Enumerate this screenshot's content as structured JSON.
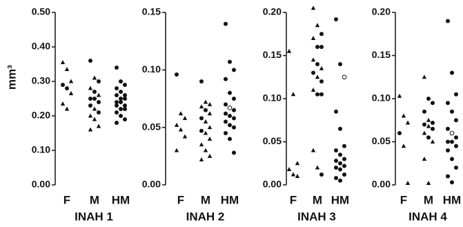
{
  "y_label": "mm³",
  "chart_data": [
    {
      "type": "strip",
      "title": "INAH 1",
      "categories": [
        "F",
        "M",
        "HM"
      ],
      "ylim": [
        0,
        0.5
      ],
      "yticks": [
        {
          "value": 0,
          "label": "0.00"
        },
        {
          "value": 0.1,
          "label": "0.10"
        },
        {
          "value": 0.2,
          "label": "0.20"
        },
        {
          "value": 0.3,
          "label": "0.30"
        },
        {
          "value": 0.4,
          "label": "0.40"
        },
        {
          "value": 0.5,
          "label": "0.50"
        }
      ],
      "groups": [
        {
          "values": [
            0.355,
            0.335,
            0.3,
            0.29,
            0.28,
            0.265,
            0.235,
            0.22
          ],
          "markers": [
            "triangle",
            "triangle",
            "triangle",
            "dot",
            "dot",
            "triangle",
            "triangle",
            "triangle"
          ]
        },
        {
          "values": [
            0.36,
            0.31,
            0.3,
            0.28,
            0.27,
            0.26,
            0.25,
            0.25,
            0.24,
            0.23,
            0.22,
            0.21,
            0.2,
            0.19,
            0.17,
            0.16
          ],
          "markers": [
            "dot",
            "triangle",
            "dot",
            "triangle",
            "dot",
            "triangle",
            "dot",
            "dot",
            "dot",
            "dot",
            "triangle",
            "dot",
            "triangle",
            "triangle",
            "triangle",
            "triangle"
          ]
        },
        {
          "values": [
            0.34,
            0.3,
            0.29,
            0.28,
            0.27,
            0.26,
            0.26,
            0.25,
            0.25,
            0.24,
            0.24,
            0.23,
            0.23,
            0.22,
            0.22,
            0.21,
            0.2,
            0.19,
            0.18
          ],
          "markers": [
            "dot",
            "dot",
            "dot",
            "dot",
            "dot",
            "dot",
            "dot",
            "dot",
            "dot",
            "dot",
            "dot",
            "dot",
            "dot",
            "dot",
            "dot",
            "dot",
            "dot",
            "dot",
            "dot"
          ]
        }
      ]
    },
    {
      "type": "strip",
      "title": "INAH 2",
      "categories": [
        "F",
        "M",
        "HM"
      ],
      "ylim": [
        0,
        0.15
      ],
      "yticks": [
        {
          "value": 0,
          "label": "0.00"
        },
        {
          "value": 0.05,
          "label": "0.05"
        },
        {
          "value": 0.1,
          "label": "0.10"
        },
        {
          "value": 0.15,
          "label": "0.15"
        }
      ],
      "groups": [
        {
          "values": [
            0.096,
            0.062,
            0.058,
            0.052,
            0.048,
            0.042,
            0.03
          ],
          "markers": [
            "dot",
            "triangle",
            "triangle",
            "triangle",
            "triangle",
            "triangle",
            "triangle"
          ]
        },
        {
          "values": [
            0.09,
            0.072,
            0.07,
            0.068,
            0.065,
            0.062,
            0.058,
            0.055,
            0.05,
            0.047,
            0.045,
            0.04,
            0.035,
            0.03,
            0.025,
            0.022
          ],
          "markers": [
            "dot",
            "triangle",
            "triangle",
            "triangle",
            "dot",
            "triangle",
            "dot",
            "triangle",
            "triangle",
            "dot",
            "triangle",
            "triangle",
            "triangle",
            "triangle",
            "triangle",
            "triangle"
          ]
        },
        {
          "values": [
            0.14,
            0.107,
            0.1,
            0.092,
            0.08,
            0.075,
            0.07,
            0.067,
            0.065,
            0.062,
            0.06,
            0.058,
            0.055,
            0.052,
            0.05,
            0.045,
            0.04,
            0.028
          ],
          "markers": [
            "dot",
            "dot",
            "dot",
            "dot",
            "dot",
            "dot",
            "dot",
            "open",
            "dot",
            "dot",
            "dot",
            "dot",
            "dot",
            "dot",
            "dot",
            "dot",
            "dot",
            "dot"
          ]
        }
      ]
    },
    {
      "type": "strip",
      "title": "INAH 3",
      "categories": [
        "F",
        "M",
        "HM"
      ],
      "ylim": [
        0,
        0.2
      ],
      "yticks": [
        {
          "value": 0,
          "label": "0.00"
        },
        {
          "value": 0.05,
          "label": "0.05"
        },
        {
          "value": 0.1,
          "label": "0.10"
        },
        {
          "value": 0.15,
          "label": "0.15"
        },
        {
          "value": 0.2,
          "label": "0.20"
        }
      ],
      "groups": [
        {
          "values": [
            0.155,
            0.105,
            0.025,
            0.018,
            0.012,
            0.01
          ],
          "markers": [
            "triangle",
            "triangle",
            "triangle",
            "triangle",
            "triangle",
            "triangle"
          ]
        },
        {
          "values": [
            0.205,
            0.185,
            0.175,
            0.17,
            0.16,
            0.16,
            0.145,
            0.14,
            0.135,
            0.13,
            0.125,
            0.12,
            0.11,
            0.105,
            0.105,
            0.04,
            0.02,
            0.012
          ],
          "markers": [
            "triangle",
            "triangle",
            "dot",
            "triangle",
            "dot",
            "dot",
            "triangle",
            "dot",
            "triangle",
            "dot",
            "triangle",
            "dot",
            "triangle",
            "dot",
            "dot",
            "triangle",
            "triangle",
            "dot"
          ]
        },
        {
          "values": [
            0.192,
            0.14,
            0.125,
            0.085,
            0.065,
            0.045,
            0.04,
            0.035,
            0.03,
            0.028,
            0.025,
            0.022,
            0.02,
            0.018,
            0.012,
            0.008,
            0.005
          ],
          "markers": [
            "dot",
            "dot",
            "open",
            "dot",
            "dot",
            "dot",
            "dot",
            "dot",
            "dot",
            "dot",
            "dot",
            "dot",
            "dot",
            "dot",
            "dot",
            "dot",
            "dot"
          ]
        }
      ]
    },
    {
      "type": "strip",
      "title": "INAH 4",
      "categories": [
        "F",
        "M",
        "HM"
      ],
      "ylim": [
        0,
        0.2
      ],
      "yticks": [
        {
          "value": 0,
          "label": "0.00"
        },
        {
          "value": 0.05,
          "label": "0.05"
        },
        {
          "value": 0.1,
          "label": "0.10"
        },
        {
          "value": 0.15,
          "label": "0.15"
        },
        {
          "value": 0.2,
          "label": "0.20"
        }
      ],
      "groups": [
        {
          "values": [
            0.103,
            0.08,
            0.072,
            0.06,
            0.045,
            0.002
          ],
          "markers": [
            "triangle",
            "triangle",
            "triangle",
            "dot",
            "triangle",
            "triangle"
          ]
        },
        {
          "values": [
            0.125,
            0.1,
            0.095,
            0.085,
            0.075,
            0.072,
            0.07,
            0.068,
            0.065,
            0.06,
            0.055,
            0.05,
            0.03,
            0.002
          ],
          "markers": [
            "triangle",
            "dot",
            "dot",
            "dot",
            "triangle",
            "dot",
            "dot",
            "triangle",
            "dot",
            "triangle",
            "dot",
            "triangle",
            "triangle",
            "triangle"
          ]
        },
        {
          "values": [
            0.19,
            0.13,
            0.105,
            0.095,
            0.085,
            0.075,
            0.065,
            0.06,
            0.055,
            0.05,
            0.05,
            0.045,
            0.04,
            0.03,
            0.02,
            0.01,
            0.003
          ],
          "markers": [
            "dot",
            "dot",
            "dot",
            "dot",
            "dot",
            "dot",
            "dot",
            "open",
            "dot",
            "dot",
            "dot",
            "dot",
            "dot",
            "dot",
            "dot",
            "dot",
            "dot"
          ]
        }
      ]
    }
  ]
}
